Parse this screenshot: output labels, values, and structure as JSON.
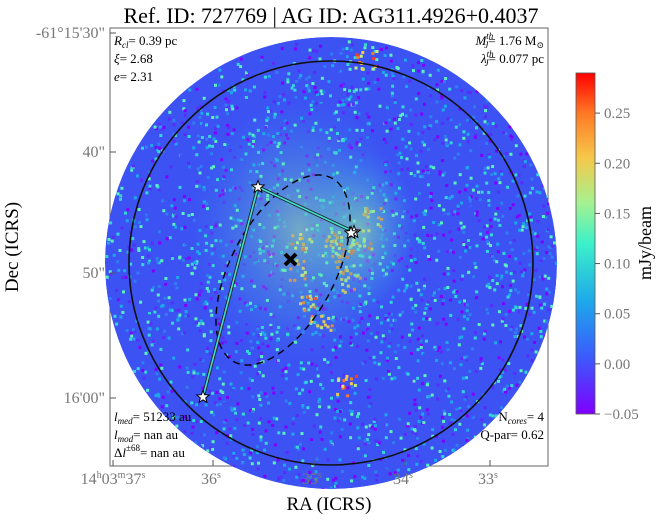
{
  "chart_data": {
    "type": "heatmap",
    "title": "Ref. ID: 727769 | AG ID: AG311.4926+0.4037",
    "xlabel": "RA (ICRS)",
    "ylabel": "Dec (ICRS)",
    "x_ticks": [
      {
        "label": "14h03m37s",
        "parts": [
          "14",
          "h",
          "03",
          "m",
          "37",
          "s"
        ]
      },
      {
        "label": "36s",
        "parts": [
          "36",
          "s"
        ]
      },
      {
        "label": "35s",
        "parts": [
          "35",
          "s"
        ]
      },
      {
        "label": "34s",
        "parts": [
          "34",
          "s"
        ]
      },
      {
        "label": "33s",
        "parts": [
          "33",
          "s"
        ]
      }
    ],
    "y_ticks": [
      "-61°15'30\"",
      "40\"",
      "50\"",
      "16'00\""
    ],
    "colorbar": {
      "label": "mJy/beam",
      "range": [
        -0.05,
        0.29
      ],
      "ticks": [
        0.25,
        0.2,
        0.15,
        0.1,
        0.05,
        0.0,
        -0.05
      ],
      "tick_labels": [
        "0.25",
        "0.20",
        "0.15",
        "0.10",
        "0.05",
        "0.00",
        "−0.05"
      ],
      "colormap": "rainbow"
    },
    "annotations": {
      "top_left": {
        "rcl": "= 0.39 pc",
        "xi": "= 2.68",
        "e": "= 2.31"
      },
      "top_right": {
        "mj": "= 1.76 M",
        "lambda": "= 0.077 pc"
      },
      "bottom_left": {
        "lmed": "= 51233 au",
        "lmod": "= nan au",
        "dl": "= nan au",
        "dl_sup": "±68"
      },
      "bottom_right": {
        "ncores": "= 4",
        "qpar": "Q-par= 0.62"
      }
    },
    "cores": 4,
    "centroid_marker": "x-mark",
    "core_marker": "star"
  }
}
